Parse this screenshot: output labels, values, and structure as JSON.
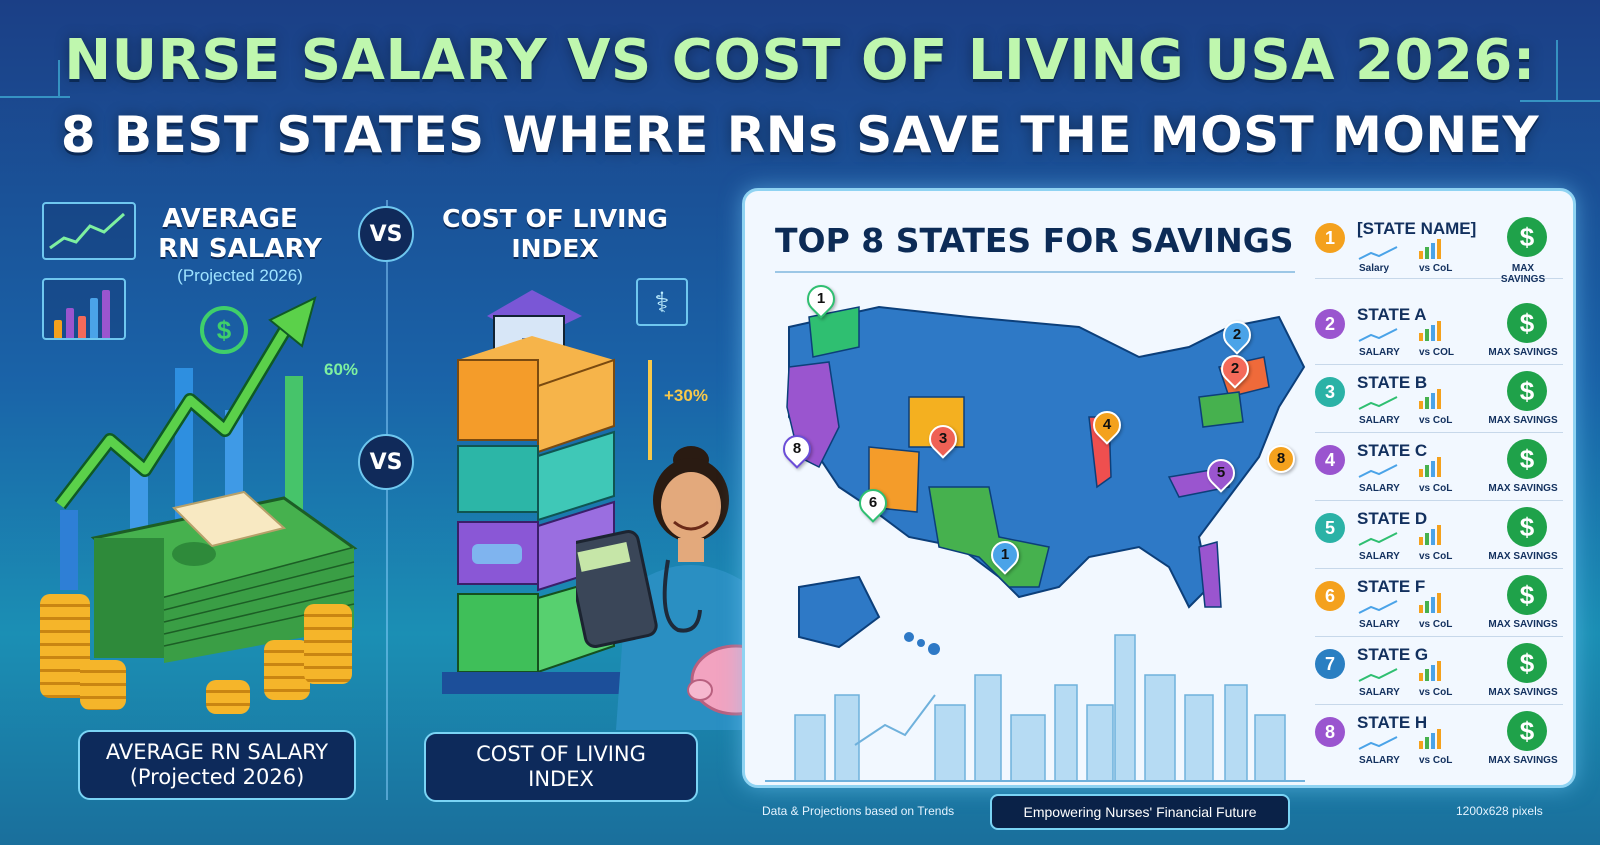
{
  "title": {
    "line1": "NURSE SALARY VS COST OF LIVING USA 2026:",
    "line2": "8 BEST STATES WHERE RNs SAVE THE MOST MONEY"
  },
  "left": {
    "salary_heading_1": "AVERAGE",
    "salary_heading_2": "RN SALARY",
    "salary_sub": "(Projected 2026)",
    "vs_label": "VS",
    "col_heading_1": "COST OF LIVING",
    "col_heading_2": "INDEX",
    "growth_pct": "60%",
    "col_pct": "+30%",
    "salary_box_1": "AVERAGE RN SALARY",
    "salary_box_2": "(Projected 2026)",
    "col_box_1": "COST OF LIVING",
    "col_box_2": "INDEX",
    "dollar_glyph": "$"
  },
  "panel": {
    "title": "TOP 8 STATES FOR SAVINGS",
    "states": [
      {
        "num": "1",
        "name": "[STATE NAME]",
        "salary": "Salary",
        "col": "vs CoL",
        "max": "MAX SAVINGS",
        "color": "#f4a11d"
      },
      {
        "num": "2",
        "name": "STATE A",
        "salary": "SALARY",
        "col": "vs COL",
        "max": "MAX SAVINGS",
        "color": "#9a55cf"
      },
      {
        "num": "3",
        "name": "STATE B",
        "salary": "SALARY",
        "col": "vs CoL",
        "max": "MAX SAVINGS",
        "color": "#2bb2a6"
      },
      {
        "num": "4",
        "name": "STATE C",
        "salary": "SALARY",
        "col": "vs CoL",
        "max": "MAX SAVINGS",
        "color": "#9a55cf"
      },
      {
        "num": "5",
        "name": "STATE D",
        "salary": "SALARY",
        "col": "vs CoL",
        "max": "MAX SAVINGS",
        "color": "#2bb2a6"
      },
      {
        "num": "6",
        "name": "STATE F",
        "salary": "SALARY",
        "col": "vs CoL",
        "max": "MAX SAVINGS",
        "color": "#f4a11d"
      },
      {
        "num": "7",
        "name": "STATE G",
        "salary": "SALARY",
        "col": "vs CoL",
        "max": "MAX SAVINGS",
        "color": "#2a7fc2"
      },
      {
        "num": "8",
        "name": "STATE H",
        "salary": "SALARY",
        "col": "vs CoL",
        "max": "MAX SAVINGS",
        "color": "#9a55cf"
      }
    ],
    "dollar_glyph": "$",
    "map_pins": [
      {
        "label": "1",
        "color": "#2fbf71"
      },
      {
        "label": "2",
        "color": "#4aa3e8"
      },
      {
        "label": "2",
        "color": "#f46a5a"
      },
      {
        "label": "3",
        "color": "#ef6155"
      },
      {
        "label": "4",
        "color": "#f4a11d"
      },
      {
        "label": "5",
        "color": "#9a55cf"
      },
      {
        "label": "8",
        "color": "#f4a11d"
      },
      {
        "label": "8",
        "color": "#6b4dd8"
      },
      {
        "label": "6",
        "color": "#2fbf71"
      },
      {
        "label": "1",
        "color": "#4aa3e8"
      }
    ]
  },
  "footer": {
    "left": "Data & Projections based on Trends",
    "center": "Empowering Nurses' Financial Future",
    "right": "1200x628 pixels"
  },
  "colors": {
    "title_green": "#bff7ae",
    "panel_bg": "#f2f8ff",
    "money_green": "#3fa548"
  }
}
